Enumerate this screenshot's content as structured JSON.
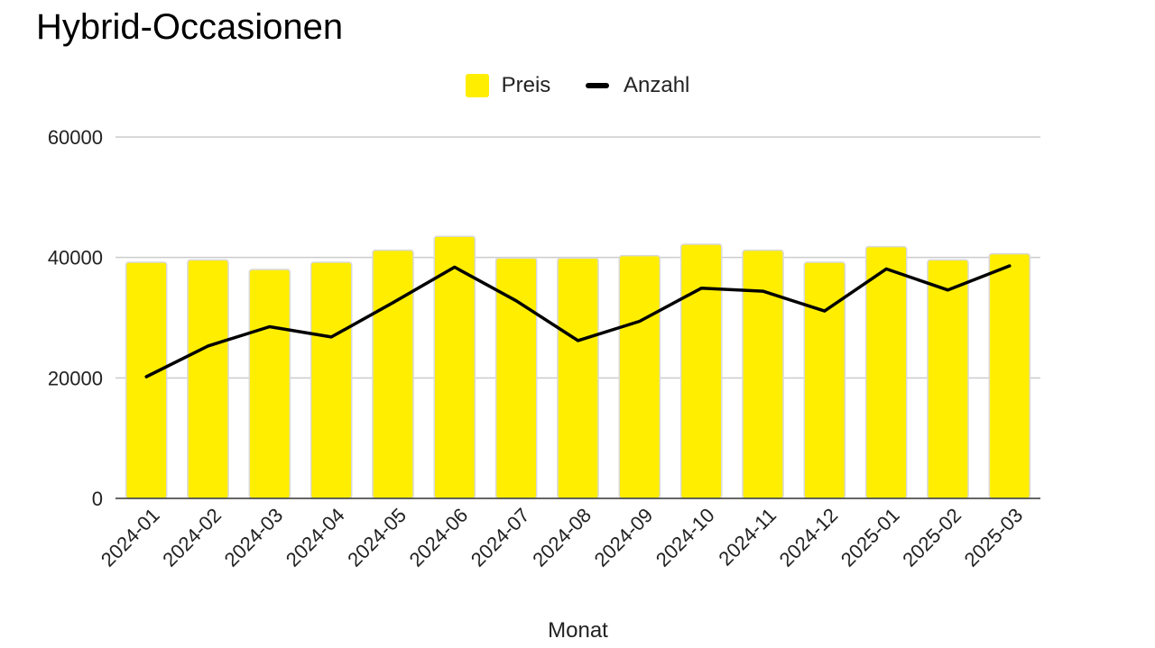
{
  "chart_data": {
    "type": "bar",
    "title": "Hybrid-Occasionen",
    "xlabel": "Monat",
    "ylabel": "",
    "ylim": [
      0,
      60000
    ],
    "yticks": [
      0,
      20000,
      40000,
      60000
    ],
    "grid": true,
    "legend_position": "top",
    "categories": [
      "2024-01",
      "2024-02",
      "2024-03",
      "2024-04",
      "2024-05",
      "2024-06",
      "2024-07",
      "2024-08",
      "2024-09",
      "2024-10",
      "2024-11",
      "2024-12",
      "2025-01",
      "2025-02",
      "2025-03"
    ],
    "series": [
      {
        "name": "Preis",
        "kind": "bar",
        "color": "#ffee00",
        "values": [
          39200,
          39600,
          38000,
          39200,
          41200,
          43500,
          39900,
          39900,
          40300,
          42200,
          41200,
          39200,
          41800,
          39600,
          40600
        ]
      },
      {
        "name": "Anzahl",
        "kind": "line",
        "color": "#000000",
        "values": [
          20200,
          25300,
          28500,
          26800,
          32500,
          38400,
          32800,
          26200,
          29400,
          34900,
          34400,
          31100,
          38100,
          34600,
          38600
        ]
      }
    ]
  }
}
